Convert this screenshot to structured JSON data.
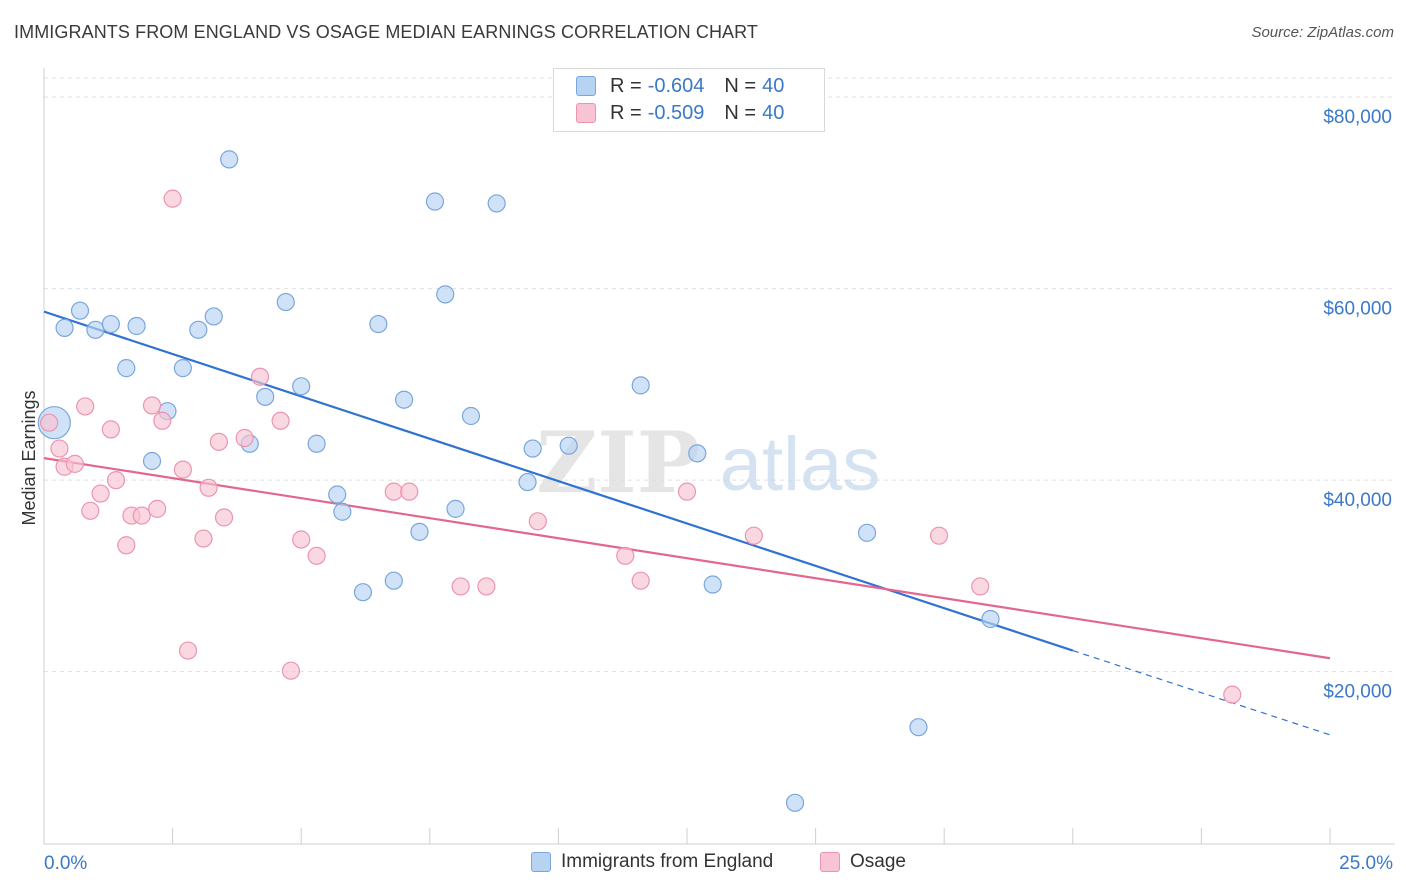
{
  "title": "IMMIGRANTS FROM ENGLAND VS OSAGE MEDIAN EARNINGS CORRELATION CHART",
  "source": "Source: ZipAtlas.com",
  "watermark": {
    "zip": "ZIP",
    "atlas": "atlas"
  },
  "legend": {
    "rows": [
      {
        "r_label": "R =",
        "r_value": "-0.604",
        "n_label": "N =",
        "n_value": "40"
      },
      {
        "r_label": "R =",
        "r_value": "-0.509",
        "n_label": "N =",
        "n_value": "40"
      }
    ]
  },
  "bottom_legend": {
    "series1": "Immigrants from England",
    "series2": "Osage"
  },
  "colors": {
    "blue_fill": "#b7d3f2",
    "blue_stroke": "#7aa6dd",
    "blue_line": "#2f72d2",
    "pink_fill": "#f8c3d3",
    "pink_stroke": "#ec94b1",
    "pink_line": "#e3668f",
    "grid": "#e0e0e0",
    "axis_text": "#3b78c8"
  },
  "chart_data": {
    "type": "scatter",
    "title": "IMMIGRANTS FROM ENGLAND VS OSAGE MEDIAN EARNINGS CORRELATION CHART",
    "xlabel": "",
    "ylabel": "Median Earnings",
    "xlim": [
      0,
      25
    ],
    "ylim": [
      2000,
      82000
    ],
    "x_tick_labels": [
      "0.0%",
      "25.0%"
    ],
    "y_ticks": [
      20000,
      40000,
      60000,
      80000
    ],
    "y_tick_labels": [
      "$20,000",
      "$40,000",
      "$60,000",
      "$80,000"
    ],
    "grid": true,
    "legend_position": "top-center",
    "series": [
      {
        "name": "Immigrants from England",
        "points": [
          {
            "x": 0.2,
            "y": 46000,
            "big": true
          },
          {
            "x": 0.4,
            "y": 55900
          },
          {
            "x": 0.7,
            "y": 57700
          },
          {
            "x": 1.0,
            "y": 55700
          },
          {
            "x": 1.3,
            "y": 56300
          },
          {
            "x": 1.6,
            "y": 51700
          },
          {
            "x": 1.8,
            "y": 56100
          },
          {
            "x": 2.1,
            "y": 42000
          },
          {
            "x": 2.4,
            "y": 47200
          },
          {
            "x": 2.7,
            "y": 51700
          },
          {
            "x": 3.0,
            "y": 55700
          },
          {
            "x": 3.3,
            "y": 57100
          },
          {
            "x": 3.6,
            "y": 73500
          },
          {
            "x": 4.0,
            "y": 43800
          },
          {
            "x": 4.3,
            "y": 48700
          },
          {
            "x": 4.7,
            "y": 58600
          },
          {
            "x": 5.0,
            "y": 49800
          },
          {
            "x": 5.3,
            "y": 43800
          },
          {
            "x": 5.7,
            "y": 38500
          },
          {
            "x": 5.8,
            "y": 36700
          },
          {
            "x": 6.2,
            "y": 28300
          },
          {
            "x": 6.5,
            "y": 56300
          },
          {
            "x": 6.8,
            "y": 29500
          },
          {
            "x": 7.0,
            "y": 48400
          },
          {
            "x": 7.3,
            "y": 34600
          },
          {
            "x": 7.6,
            "y": 69100
          },
          {
            "x": 7.8,
            "y": 59400
          },
          {
            "x": 8.0,
            "y": 37000
          },
          {
            "x": 8.3,
            "y": 46700
          },
          {
            "x": 8.8,
            "y": 68900
          },
          {
            "x": 9.4,
            "y": 39800
          },
          {
            "x": 9.5,
            "y": 43300
          },
          {
            "x": 10.2,
            "y": 43600
          },
          {
            "x": 11.6,
            "y": 49900
          },
          {
            "x": 12.7,
            "y": 42800
          },
          {
            "x": 13.0,
            "y": 29100
          },
          {
            "x": 14.6,
            "y": 6300
          },
          {
            "x": 16.0,
            "y": 34500
          },
          {
            "x": 17.0,
            "y": 14200
          },
          {
            "x": 18.4,
            "y": 25500
          }
        ],
        "trend": {
          "x1": 0,
          "y1": 57600,
          "x2": 20,
          "y2": 22200,
          "dash_to_x": 25,
          "dash_to_y": 13400
        }
      },
      {
        "name": "Osage",
        "points": [
          {
            "x": 0.1,
            "y": 46000
          },
          {
            "x": 0.3,
            "y": 43300
          },
          {
            "x": 0.4,
            "y": 41400
          },
          {
            "x": 0.6,
            "y": 41700
          },
          {
            "x": 0.8,
            "y": 47700
          },
          {
            "x": 0.9,
            "y": 36800
          },
          {
            "x": 1.1,
            "y": 38600
          },
          {
            "x": 1.3,
            "y": 45300
          },
          {
            "x": 1.4,
            "y": 40000
          },
          {
            "x": 1.6,
            "y": 33200
          },
          {
            "x": 1.7,
            "y": 36300
          },
          {
            "x": 1.9,
            "y": 36300
          },
          {
            "x": 2.1,
            "y": 47800
          },
          {
            "x": 2.2,
            "y": 37000
          },
          {
            "x": 2.3,
            "y": 46200
          },
          {
            "x": 2.5,
            "y": 69400
          },
          {
            "x": 2.7,
            "y": 41100
          },
          {
            "x": 2.8,
            "y": 22200
          },
          {
            "x": 3.1,
            "y": 33900
          },
          {
            "x": 3.2,
            "y": 39200
          },
          {
            "x": 3.4,
            "y": 44000
          },
          {
            "x": 3.5,
            "y": 36100
          },
          {
            "x": 3.9,
            "y": 44400
          },
          {
            "x": 4.2,
            "y": 50800
          },
          {
            "x": 4.6,
            "y": 46200
          },
          {
            "x": 4.8,
            "y": 20100
          },
          {
            "x": 5.0,
            "y": 33800
          },
          {
            "x": 5.3,
            "y": 32100
          },
          {
            "x": 6.8,
            "y": 38800
          },
          {
            "x": 7.1,
            "y": 38800
          },
          {
            "x": 8.1,
            "y": 28900
          },
          {
            "x": 8.6,
            "y": 28900
          },
          {
            "x": 9.6,
            "y": 35700
          },
          {
            "x": 11.3,
            "y": 32100
          },
          {
            "x": 11.6,
            "y": 29500
          },
          {
            "x": 12.5,
            "y": 38800
          },
          {
            "x": 13.8,
            "y": 34200
          },
          {
            "x": 17.4,
            "y": 34200
          },
          {
            "x": 18.2,
            "y": 28900
          },
          {
            "x": 23.1,
            "y": 17600
          }
        ],
        "trend": {
          "x1": 0,
          "y1": 42300,
          "x2": 25,
          "y2": 21400
        }
      }
    ]
  }
}
